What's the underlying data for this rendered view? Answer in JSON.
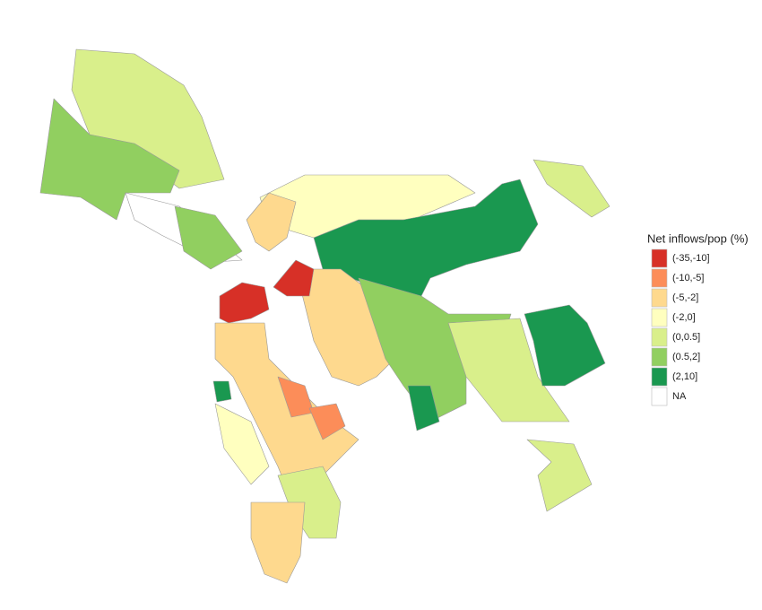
{
  "legend": {
    "title": "Net inflows/pop (%)",
    "items": [
      {
        "label": "(-35,-10]",
        "color": "#d73027"
      },
      {
        "label": "(-10,-5]",
        "color": "#fc8d59"
      },
      {
        "label": "(-5,-2]",
        "color": "#fed98e"
      },
      {
        "label": "(-2,0]",
        "color": "#ffffbf"
      },
      {
        "label": "(0,0.5]",
        "color": "#d9ef8b"
      },
      {
        "label": "(0.5,2]",
        "color": "#91cf60"
      },
      {
        "label": "(2,10]",
        "color": "#1a9850"
      },
      {
        "label": "NA",
        "color": "#ffffff"
      }
    ]
  }
}
